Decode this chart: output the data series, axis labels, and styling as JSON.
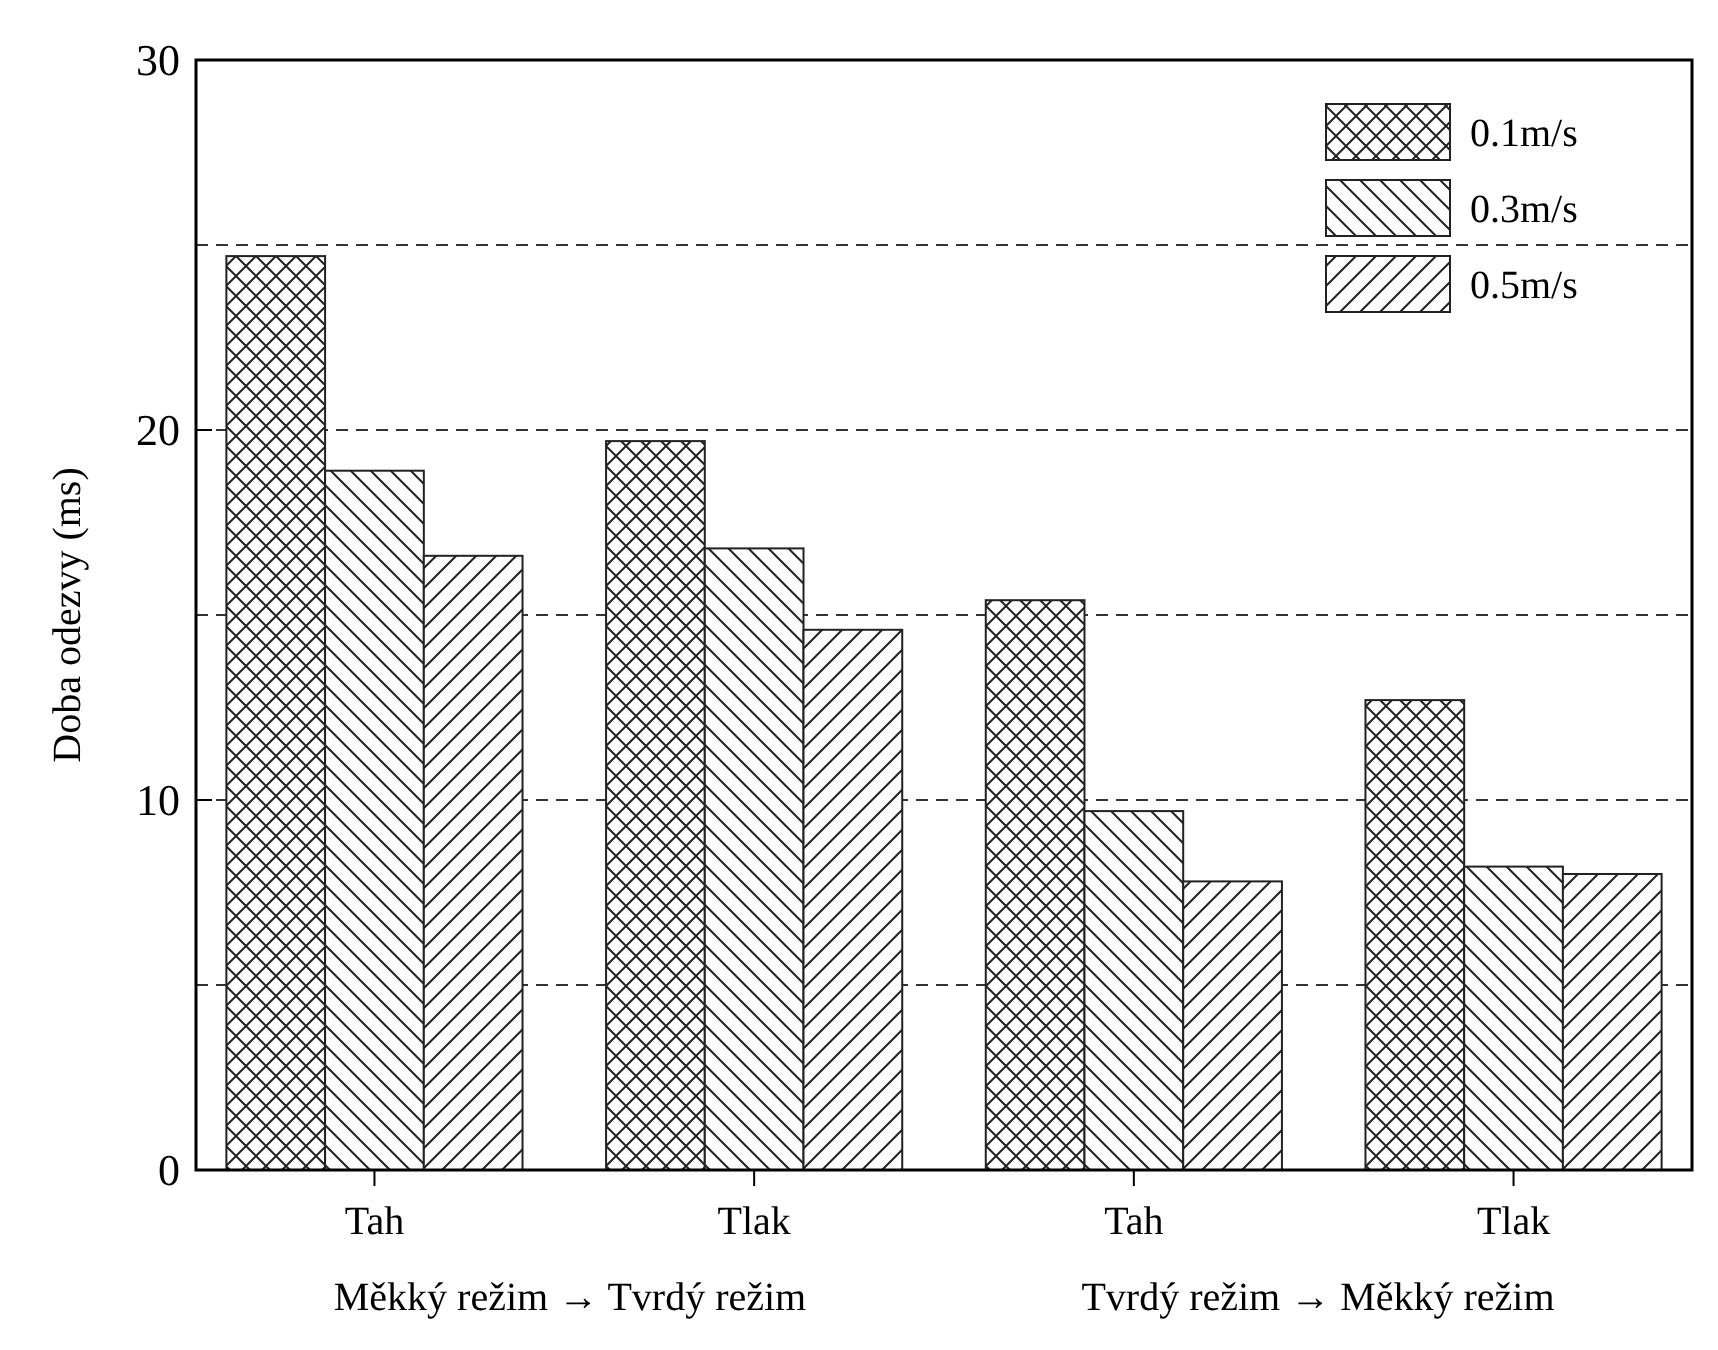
{
  "chart_data": {
    "type": "bar",
    "ylabel": "Doba odezvy (ms)",
    "categories": [
      "Tah",
      "Tlak",
      "Tah",
      "Tlak"
    ],
    "series": [
      {
        "name": "0.1m/s",
        "color": "#222222",
        "values": [
          24.7,
          19.7,
          15.4,
          12.7
        ]
      },
      {
        "name": "0.3m/s",
        "color": "#222222",
        "values": [
          18.9,
          16.8,
          9.7,
          8.2
        ]
      },
      {
        "name": "0.5m/s",
        "color": "#222222",
        "values": [
          16.6,
          14.6,
          7.8,
          8.0
        ]
      }
    ],
    "ylim": [
      0,
      30
    ],
    "yticks": [
      0,
      10,
      20,
      30
    ],
    "grid": "y",
    "legend": "top right",
    "annotations": [
      "Měkký režim → Tvrdý režim",
      "Tvrdý režim → Měkký režim"
    ]
  }
}
